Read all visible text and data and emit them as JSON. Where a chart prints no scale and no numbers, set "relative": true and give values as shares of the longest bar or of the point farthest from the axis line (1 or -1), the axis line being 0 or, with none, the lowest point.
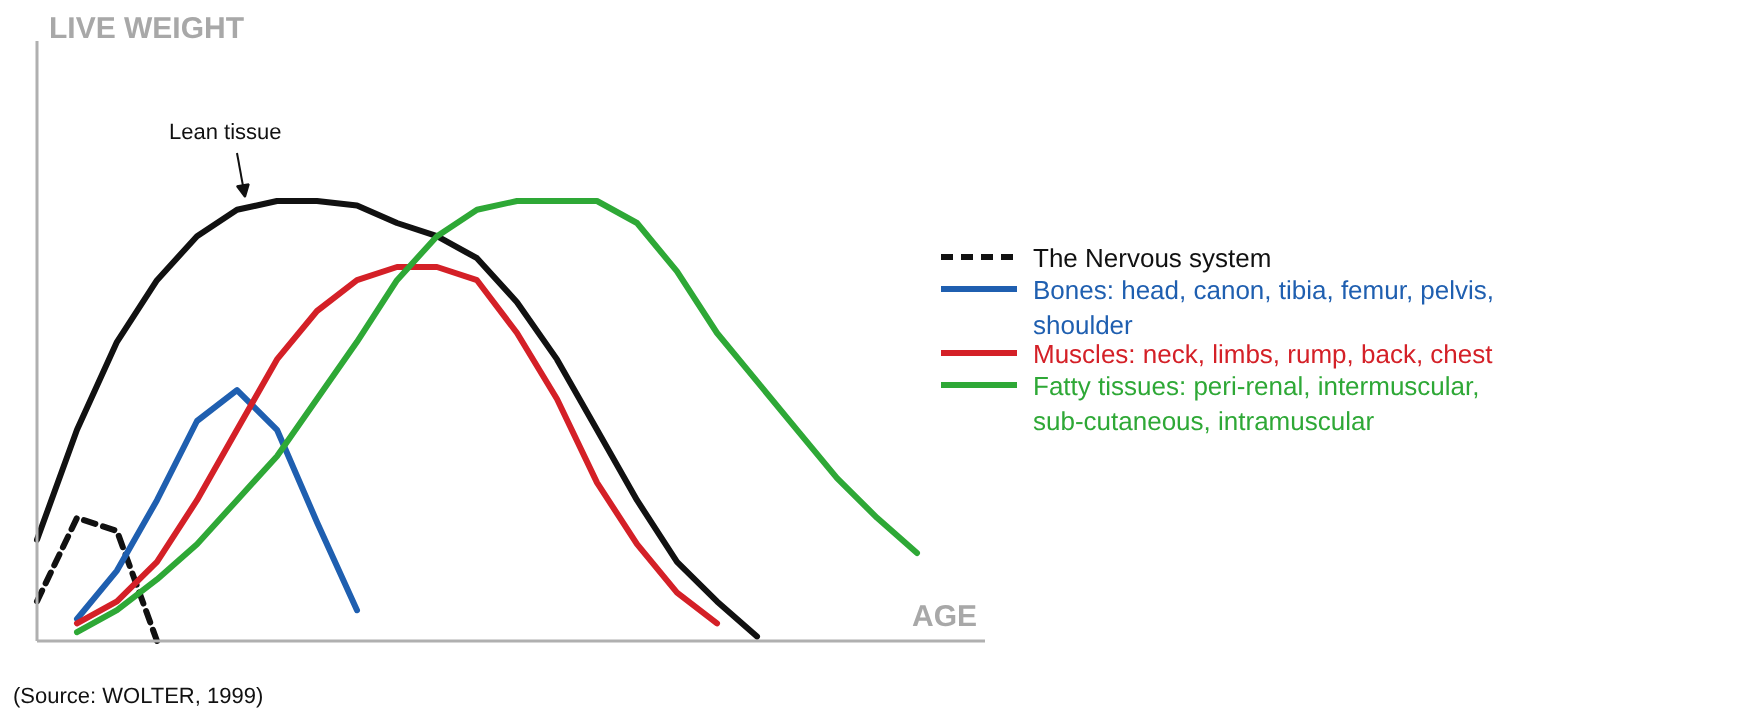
{
  "chart_data": {
    "type": "line",
    "relative": true,
    "xlabel": "AGE",
    "legend": "right",
    "grid": false,
    "tick_labels": false,
    "categories": [
      null,
      null,
      null,
      null,
      null,
      null,
      null,
      null,
      null,
      null,
      null,
      null,
      null,
      null,
      null,
      null,
      null,
      null,
      null,
      null,
      null,
      null,
      null
    ],
    "series": [
      {
        "color": "#111111",
        "line_style": "solid",
        "values": [
          0.23,
          0.48,
          0.68,
          0.82,
          0.92,
          0.98,
          1,
          1,
          0.99,
          0.95,
          0.92,
          0.87,
          0.77,
          0.64,
          0.48,
          0.32,
          0.18,
          0.09,
          0.01,
          null,
          null,
          null,
          null
        ]
      },
      {
        "name": "The Nervous system",
        "color": "#111111",
        "line_style": "dashed",
        "values": [
          0.09,
          0.28,
          0.25,
          0,
          null,
          null,
          null,
          null,
          null,
          null,
          null,
          null,
          null,
          null,
          null,
          null,
          null,
          null,
          null,
          null,
          null,
          null,
          null
        ]
      },
      {
        "name": "Bones: head, canon, tibia, femur, pelvis, shoulder",
        "color": "#1f5fb0",
        "line_style": "solid",
        "values": [
          null,
          0.05,
          0.16,
          0.32,
          0.5,
          0.57,
          0.48,
          0.27,
          0.07,
          null,
          null,
          null,
          null,
          null,
          null,
          null,
          null,
          null,
          null,
          null,
          null,
          null,
          null
        ]
      },
      {
        "name": "Muscles: neck, limbs, rump, back, chest",
        "color": "#d42027",
        "line_style": "solid",
        "values": [
          null,
          0.04,
          0.09,
          0.18,
          0.32,
          0.48,
          0.64,
          0.75,
          0.82,
          0.85,
          0.85,
          0.82,
          0.7,
          0.55,
          0.36,
          0.22,
          0.11,
          0.04,
          null,
          null,
          null,
          null,
          null
        ]
      },
      {
        "name": "Fatty tissues: peri-renal, intermuscular, sub-cutaneous, intramuscular",
        "color": "#2ea836",
        "line_style": "solid",
        "values": [
          null,
          0.02,
          0.07,
          0.14,
          0.22,
          0.32,
          0.42,
          0.55,
          0.68,
          0.82,
          0.92,
          0.98,
          1,
          1,
          1,
          0.95,
          0.84,
          0.7,
          0.59,
          0.48,
          0.37,
          0.28,
          0.2
        ]
      }
    ],
    "annotations": [
      "Lean tissue",
      "(Source: WOLTER, 1999)",
      "LIVE WEIGHT"
    ]
  }
}
